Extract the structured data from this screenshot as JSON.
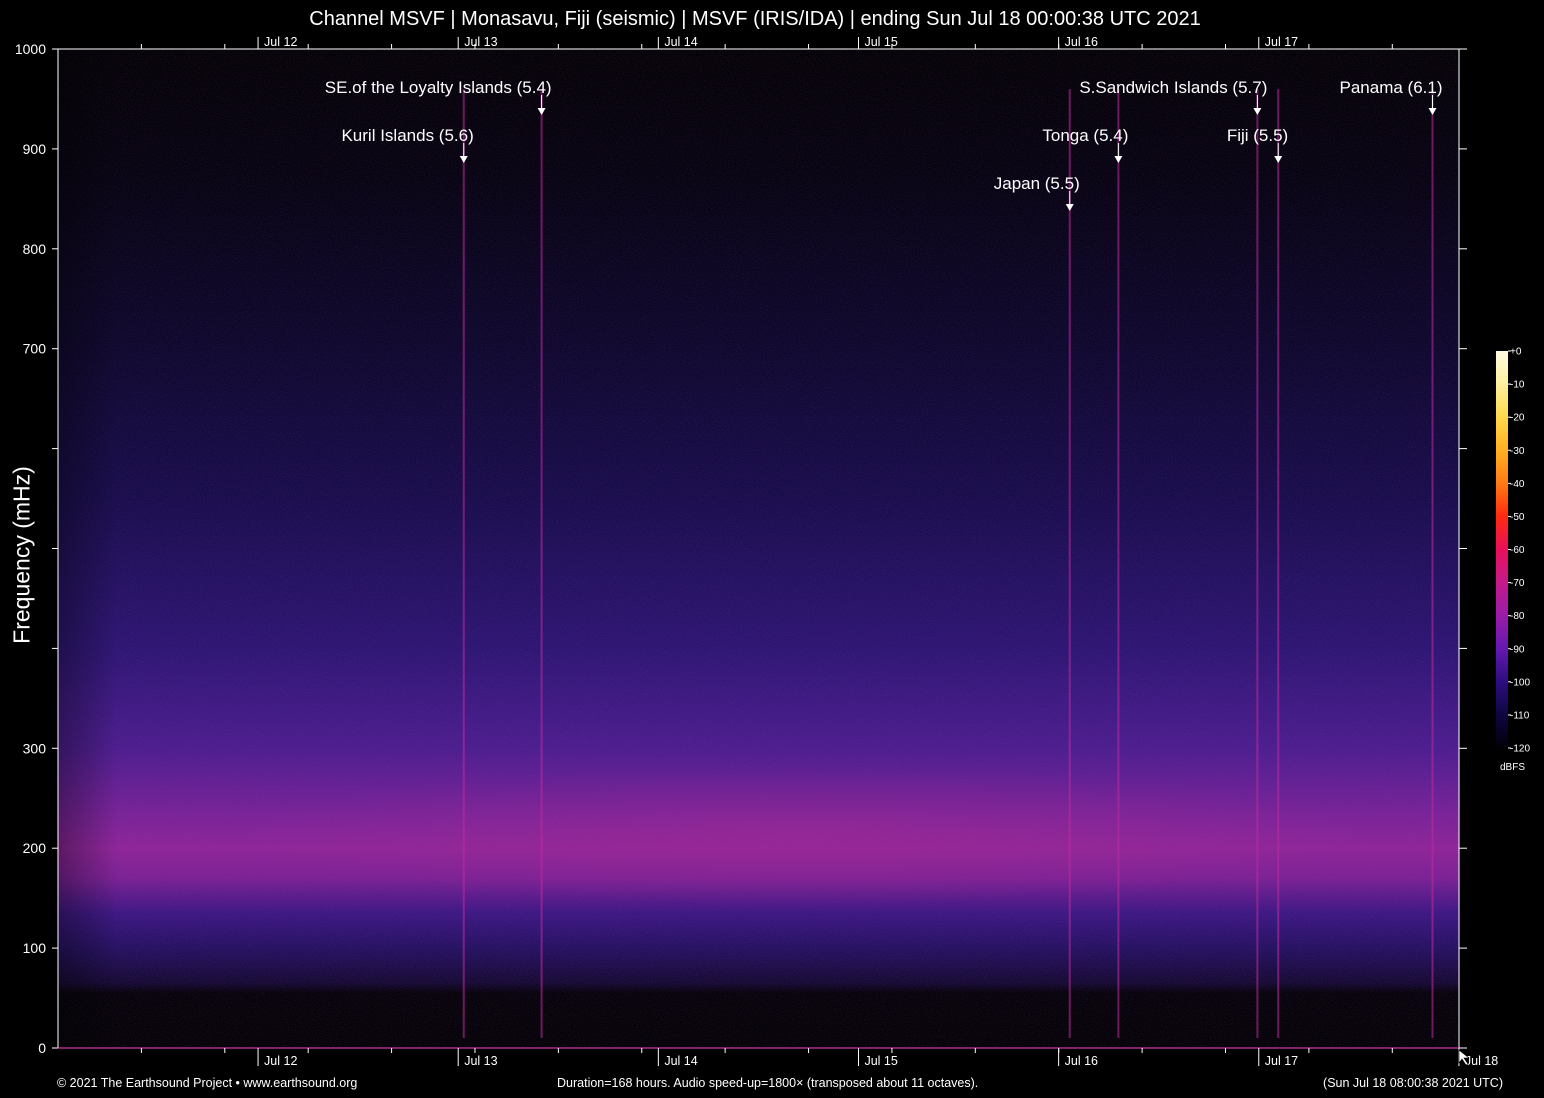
{
  "title": "Channel MSVF | Monasavu, Fiji (seismic) | MSVF (IRIS/IDA) | ending Sun Jul 18 00:00:38 UTC 2021",
  "footer": {
    "copyright": "© 2021 The Earthsound Project • www.earthsound.org",
    "duration": "Duration=168 hours. Audio speed-up=1800× (transposed about 11 octaves).",
    "local_time": "(Sun Jul 18 08:00:38 2021 UTC)"
  },
  "colorbar": {
    "unit": "dBFS",
    "ticks": [
      "+0",
      "-10",
      "-20",
      "-30",
      "-40",
      "-50",
      "-60",
      "-70",
      "-80",
      "-90",
      "-100",
      "-110",
      "-120"
    ],
    "colors": [
      "#fffbe0",
      "#fff0a0",
      "#ffd84a",
      "#ffb020",
      "#ff7a14",
      "#ff2a10",
      "#e8105a",
      "#c41a8a",
      "#9a1ca8",
      "#6418b0",
      "#2c0e80",
      "#0e0640",
      "#000008"
    ]
  },
  "chart_data": {
    "type": "heatmap",
    "ylabel": "Frequency (mHz)",
    "ylim": [
      0,
      1000
    ],
    "y_ticks": [
      0,
      100,
      200,
      300,
      400,
      500,
      600,
      700,
      800,
      900,
      1000
    ],
    "y_tick_labels": [
      "0",
      "100",
      "200",
      "300",
      "",
      "",
      "",
      "700",
      "800",
      "900",
      "1000"
    ],
    "xlim": [
      "2021-07-11T00:00:38Z",
      "2021-07-18T00:00:38Z"
    ],
    "x_ticks": [
      "2021-07-12",
      "2021-07-13",
      "2021-07-14",
      "2021-07-15",
      "2021-07-16",
      "2021-07-17",
      "2021-07-18"
    ],
    "x_tick_labels": [
      "Jul 12",
      "Jul 13",
      "Jul 14",
      "Jul 15",
      "Jul 16",
      "Jul 17",
      "Jul 18"
    ],
    "top_tick_labels": [
      "Jul 12",
      "Jul 13",
      "Jul 14",
      "Jul 15",
      "Jul 16",
      "Jul 17"
    ],
    "events": [
      {
        "label": "SE.of the Loyalty Islands (5.4)",
        "time": "2021-07-13T10:00:00Z",
        "row": 1
      },
      {
        "label": "Kuril Islands (5.6)",
        "time": "2021-07-13T00:40:00Z",
        "row": 2
      },
      {
        "label": "S.Sandwich Islands (5.7)",
        "time": "2021-07-16T23:50:00Z",
        "row": 1
      },
      {
        "label": "Panama (6.1)",
        "time": "2021-07-17T20:50:00Z",
        "row": 1
      },
      {
        "label": "Tonga (5.4)",
        "time": "2021-07-16T07:10:00Z",
        "row": 2
      },
      {
        "label": "Fiji (5.5)",
        "time": "2021-07-17T02:20:00Z",
        "row": 2
      },
      {
        "label": "Japan (5.5)",
        "time": "2021-07-16T01:20:00Z",
        "row": 3
      }
    ],
    "broadband_noise_band_mHz": [
      130,
      300
    ],
    "broadband_noise_peak_mHz": 210
  }
}
